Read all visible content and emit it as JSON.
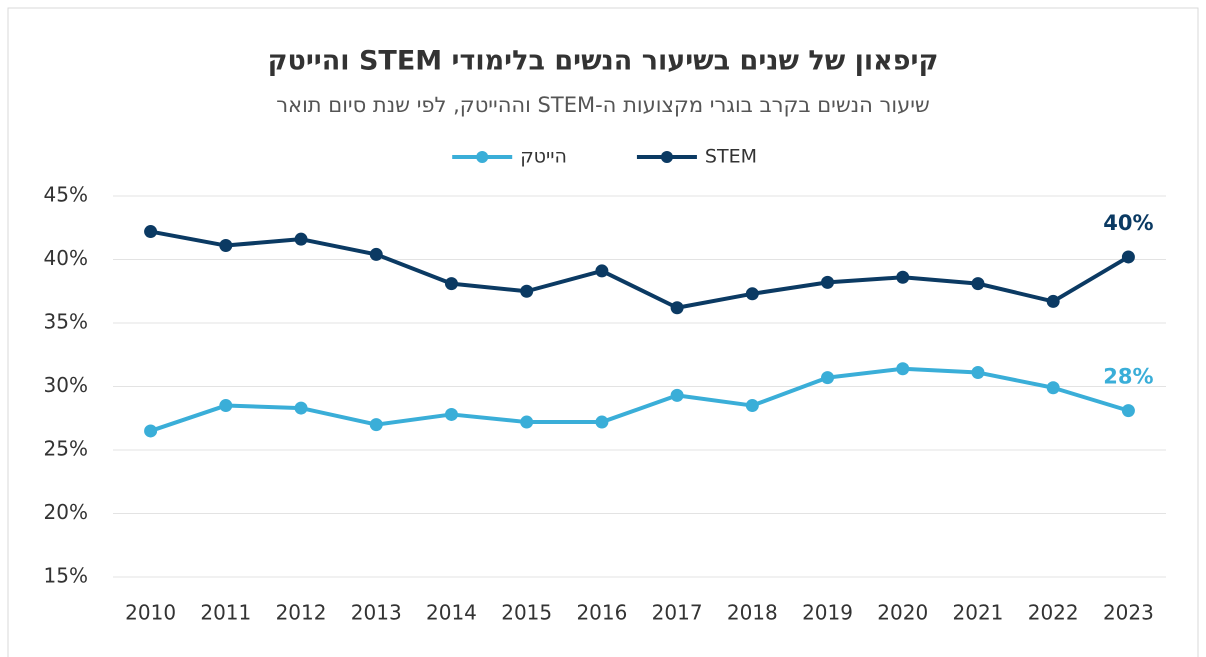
{
  "chart_data": {
    "type": "line",
    "title": "קיפאון של שנים בשיעור הנשים בלימודי STEM והייטק",
    "subtitle": "שיעור הנשים בקרב בוגרי מקצועות ה-STEM וההייטק, לפי שנת סיום תואר",
    "x": [
      2010,
      2011,
      2012,
      2013,
      2014,
      2015,
      2016,
      2017,
      2018,
      2019,
      2020,
      2021,
      2022,
      2023
    ],
    "xlim": [
      2009.5,
      2023.5
    ],
    "xticks": [
      2010,
      2011,
      2012,
      2013,
      2014,
      2015,
      2016,
      2017,
      2018,
      2019,
      2020,
      2021,
      2022,
      2023
    ],
    "ylim": [
      15,
      45
    ],
    "yticks": [
      {
        "value": 15,
        "label": "15%"
      },
      {
        "value": 20,
        "label": "20%"
      },
      {
        "value": 25,
        "label": "25%"
      },
      {
        "value": 30,
        "label": "30%"
      },
      {
        "value": 35,
        "label": "35%"
      },
      {
        "value": 40,
        "label": "40%"
      },
      {
        "value": 45,
        "label": "45%"
      }
    ],
    "grid": true,
    "legend": "top",
    "series": [
      {
        "name": "STEM",
        "color": "#0b3a63",
        "values": [
          42.2,
          41.1,
          41.6,
          40.4,
          38.1,
          37.5,
          39.1,
          36.2,
          37.3,
          38.2,
          38.6,
          38.1,
          36.7,
          40.2
        ],
        "value_labels": [
          null,
          null,
          null,
          null,
          null,
          null,
          null,
          null,
          null,
          null,
          null,
          null,
          null,
          "40%"
        ]
      },
      {
        "name": "הייטק",
        "color": "#3aaed8",
        "values": [
          26.5,
          28.5,
          28.3,
          27.0,
          27.8,
          27.2,
          27.2,
          29.3,
          28.5,
          30.7,
          31.4,
          31.1,
          29.9,
          28.1
        ],
        "value_labels": [
          null,
          null,
          null,
          null,
          null,
          null,
          null,
          null,
          null,
          null,
          null,
          null,
          null,
          "28%"
        ]
      }
    ]
  }
}
